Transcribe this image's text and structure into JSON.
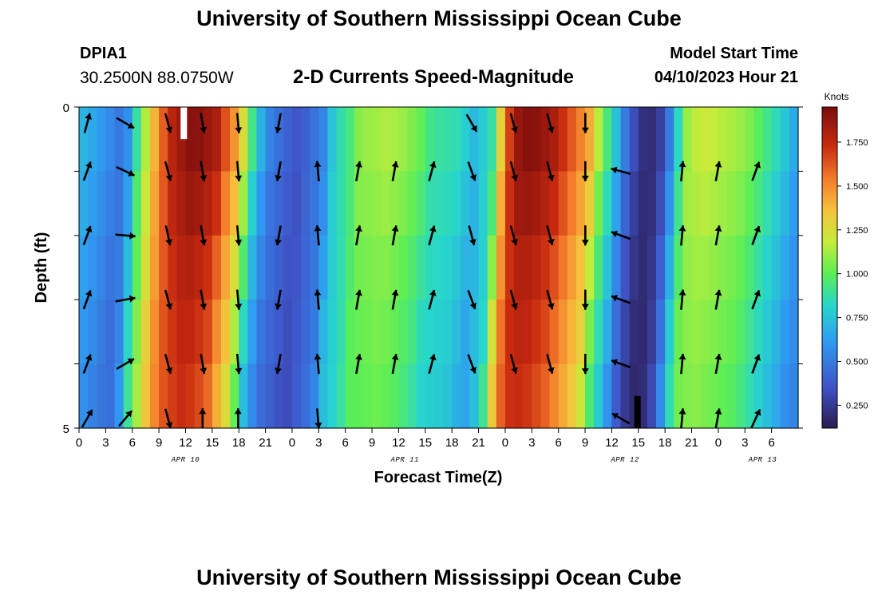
{
  "header": {
    "title": "University of Southern Mississippi Ocean Cube",
    "station_id": "DPIA1",
    "coords": "30.2500N  88.0750W",
    "subtitle": "2-D Currents Speed-Magnitude",
    "model_start_label": "Model Start Time",
    "model_start_value": "04/10/2023 Hour 21"
  },
  "footer": {
    "title": "University of Southern Mississippi Ocean Cube"
  },
  "colors": {
    "low": "#2b1a4f",
    "mid": "#5aee56",
    "high": "#7a0d0d",
    "arrow": "#000000"
  },
  "chart_data": {
    "type": "heatmap",
    "title": "2-D Currents Speed-Magnitude",
    "xlabel": "Forecast Time(Z)",
    "ylabel": "Depth (ft)",
    "ylim": [
      0,
      5
    ],
    "y_tick_labels": [
      "0",
      "5"
    ],
    "x_range_hours": [
      0,
      81
    ],
    "x_tick_labels": [
      "0",
      "3",
      "6",
      "9",
      "12",
      "15",
      "18",
      "21",
      "0",
      "3",
      "6",
      "9",
      "12",
      "15",
      "18",
      "21",
      "0",
      "3",
      "6",
      "9",
      "12",
      "15",
      "18",
      "21",
      "0",
      "3",
      "6"
    ],
    "date_labels": [
      {
        "label": "APR 10",
        "hour": 12
      },
      {
        "label": "APR 11",
        "hour": 36.7
      },
      {
        "label": "APR 12",
        "hour": 61.5
      },
      {
        "label": "APR 13",
        "hour": 77
      }
    ],
    "colorbar": {
      "label": "Knots",
      "min": 0.12,
      "max": 1.95,
      "ticks": [
        0.25,
        0.5,
        0.75,
        1.0,
        1.25,
        1.5,
        1.75
      ],
      "tick_labels": [
        "0.250",
        "0.500",
        "0.750",
        "1.000",
        "1.250",
        "1.500",
        "1.750"
      ]
    },
    "depth_layers": 5,
    "speed_profile_hours": [
      0,
      2,
      4,
      5,
      6,
      7,
      8,
      9,
      10,
      12,
      13,
      15,
      16,
      17,
      18,
      19,
      20,
      21,
      22,
      24,
      27,
      28,
      30,
      31,
      33,
      34,
      36,
      38,
      39,
      42,
      44,
      46,
      47,
      48,
      49,
      50,
      51,
      53,
      55,
      57,
      58,
      60,
      61,
      62,
      63,
      64,
      65,
      66,
      67,
      68,
      70,
      72,
      74,
      75,
      77,
      79,
      80,
      81
    ],
    "speed_profile_knots": [
      0.7,
      0.6,
      0.48,
      0.6,
      0.95,
      1.2,
      1.45,
      1.65,
      1.8,
      1.92,
      1.9,
      1.8,
      1.6,
      1.45,
      1.2,
      0.85,
      0.65,
      0.5,
      0.45,
      0.35,
      0.55,
      0.8,
      0.95,
      1.1,
      1.12,
      1.15,
      1.1,
      1.0,
      0.9,
      0.85,
      0.7,
      0.9,
      1.4,
      1.75,
      1.9,
      1.92,
      1.9,
      1.8,
      1.6,
      1.4,
      1.1,
      0.7,
      0.45,
      0.3,
      0.2,
      0.2,
      0.3,
      0.55,
      0.9,
      1.15,
      1.2,
      1.15,
      1.1,
      1.05,
      0.9,
      0.75,
      0.65,
      0.6
    ],
    "depth_factors": [
      1.0,
      0.97,
      0.94,
      0.92,
      0.9
    ],
    "arrow_columns": [
      {
        "hour": 0.2,
        "dirs_deg": [
          15,
          20,
          20,
          20,
          20,
          30
        ],
        "len": 0.9
      },
      {
        "hour": 4.5,
        "dirs_deg": [
          120,
          115,
          95,
          80,
          60,
          40
        ],
        "len": 0.9
      },
      {
        "hour": 9.3,
        "dirs_deg": [
          165,
          165,
          168,
          165,
          165,
          165
        ],
        "len": 0.9
      },
      {
        "hour": 13.2,
        "dirs_deg": [
          170,
          170,
          170,
          170,
          170,
          0
        ],
        "len": 0.9
      },
      {
        "hour": 17.2,
        "dirs_deg": [
          175,
          175,
          175,
          175,
          175,
          0
        ],
        "len": 0.9
      },
      {
        "hour": 21.8,
        "dirs_deg": [
          190,
          190,
          190,
          190,
          190,
          0
        ],
        "len": 0.9
      },
      {
        "hour": 26.2,
        "dirs_deg": [
          0,
          355,
          355,
          355,
          355,
          175
        ],
        "len": 0.9
      },
      {
        "hour": 30.7,
        "dirs_deg": [
          0,
          10,
          10,
          10,
          10,
          0
        ],
        "len": 0.9
      },
      {
        "hour": 34.8,
        "dirs_deg": [
          0,
          10,
          10,
          10,
          10,
          0
        ],
        "len": 0.9
      },
      {
        "hour": 39.0,
        "dirs_deg": [
          0,
          15,
          15,
          15,
          15,
          0
        ],
        "len": 0.9
      },
      {
        "hour": 43.5,
        "dirs_deg": [
          150,
          160,
          165,
          160,
          160,
          0
        ],
        "len": 0.9
      },
      {
        "hour": 48.2,
        "dirs_deg": [
          165,
          165,
          165,
          165,
          165,
          0
        ],
        "len": 0.9
      },
      {
        "hour": 52.3,
        "dirs_deg": [
          165,
          165,
          165,
          165,
          165,
          0
        ],
        "len": 0.9
      },
      {
        "hour": 56.3,
        "dirs_deg": [
          180,
          180,
          180,
          180,
          180,
          0
        ],
        "len": 0.9
      },
      {
        "hour": 60.3,
        "dirs_deg": [
          0,
          285,
          290,
          290,
          290,
          300
        ],
        "len": 0.9
      },
      {
        "hour": 67.2,
        "dirs_deg": [
          0,
          5,
          5,
          5,
          5,
          5
        ],
        "len": 0.9
      },
      {
        "hour": 71.2,
        "dirs_deg": [
          0,
          10,
          10,
          10,
          10,
          10
        ],
        "len": 0.9
      },
      {
        "hour": 75.5,
        "dirs_deg": [
          0,
          20,
          20,
          20,
          20,
          25
        ],
        "len": 0.9
      }
    ],
    "markers": [
      {
        "hour": 11.8,
        "depth_from": 0,
        "depth_to": 0.5,
        "color": "#ffffff"
      },
      {
        "hour": 62.9,
        "depth_from": 4.5,
        "depth_to": 5,
        "color": "#000000"
      }
    ]
  }
}
